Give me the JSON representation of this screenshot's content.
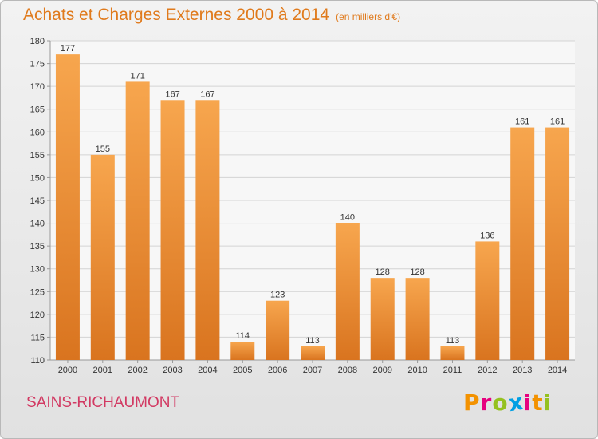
{
  "header": {
    "title": "Achats et Charges Externes 2000 à 2014",
    "subtitle": "(en milliers d'€)"
  },
  "footer": {
    "commune": "SAINS-RICHAUMONT",
    "logo_text": "Proxiti",
    "logo_letters": [
      "P",
      "r",
      "o",
      "x",
      "i",
      "t",
      "i"
    ],
    "logo_colors": [
      "#f39200",
      "#e6007e",
      "#95c11f",
      "#009fe3",
      "#e6007e",
      "#f39200",
      "#95c11f"
    ]
  },
  "colors": {
    "accent": "#e07a1c",
    "commune": "#d23a63",
    "bar_top": "#f7a64e",
    "bar_bottom": "#d9741f"
  },
  "chart_data": {
    "type": "bar",
    "title": "Achats et Charges Externes 2000 à 2014",
    "subtitle": "(en milliers d'€)",
    "categories": [
      "2000",
      "2001",
      "2002",
      "2003",
      "2004",
      "2005",
      "2006",
      "2007",
      "2008",
      "2009",
      "2010",
      "2011",
      "2012",
      "2013",
      "2014"
    ],
    "values": [
      177,
      155,
      171,
      167,
      167,
      114,
      123,
      113,
      140,
      128,
      128,
      113,
      136,
      161,
      161
    ],
    "ylim": [
      110,
      180
    ],
    "yticks": [
      110,
      115,
      120,
      125,
      130,
      135,
      140,
      145,
      150,
      155,
      160,
      165,
      170,
      175,
      180
    ],
    "grid": true,
    "data_labels": true,
    "legend": "none"
  }
}
